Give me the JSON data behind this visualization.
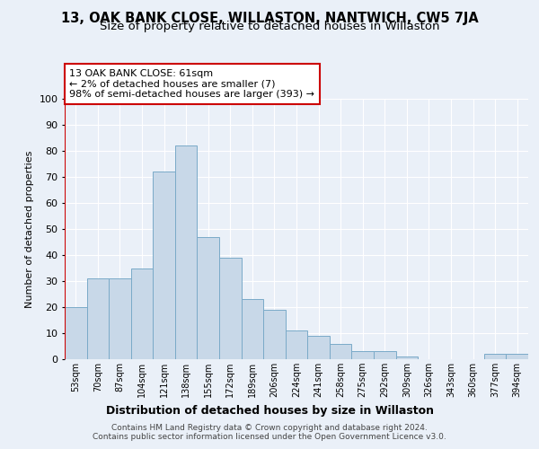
{
  "title": "13, OAK BANK CLOSE, WILLASTON, NANTWICH, CW5 7JA",
  "subtitle": "Size of property relative to detached houses in Willaston",
  "xlabel": "Distribution of detached houses by size in Willaston",
  "ylabel": "Number of detached properties",
  "bar_labels": [
    "53sqm",
    "70sqm",
    "87sqm",
    "104sqm",
    "121sqm",
    "138sqm",
    "155sqm",
    "172sqm",
    "189sqm",
    "206sqm",
    "224sqm",
    "241sqm",
    "258sqm",
    "275sqm",
    "292sqm",
    "309sqm",
    "326sqm",
    "343sqm",
    "360sqm",
    "377sqm",
    "394sqm"
  ],
  "bar_values": [
    20,
    31,
    31,
    35,
    72,
    82,
    47,
    39,
    23,
    19,
    11,
    9,
    6,
    3,
    3,
    1,
    0,
    0,
    0,
    2,
    2
  ],
  "bar_color": "#c8d8e8",
  "bar_edge_color": "#7aaac8",
  "marker_color": "#cc0000",
  "annotation_lines": [
    "13 OAK BANK CLOSE: 61sqm",
    "← 2% of detached houses are smaller (7)",
    "98% of semi-detached houses are larger (393) →"
  ],
  "annotation_box_color": "#ffffff",
  "annotation_box_edge": "#cc0000",
  "ylim": [
    0,
    100
  ],
  "yticks": [
    0,
    10,
    20,
    30,
    40,
    50,
    60,
    70,
    80,
    90,
    100
  ],
  "footer1": "Contains HM Land Registry data © Crown copyright and database right 2024.",
  "footer2": "Contains public sector information licensed under the Open Government Licence v3.0.",
  "bg_color": "#eaf0f8",
  "plot_bg_color": "#eaf0f8",
  "grid_color": "#ffffff",
  "title_fontsize": 10.5,
  "subtitle_fontsize": 9.5
}
